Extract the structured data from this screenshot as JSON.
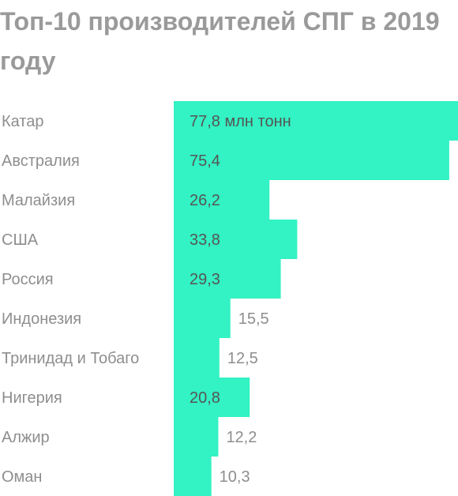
{
  "title": "Топ-10 производителей СПГ в 2019 году",
  "colors": {
    "bar": "#33f2c3",
    "label_gray": "#8e8e8e",
    "value_inside": "#555555",
    "value_outside": "#8e8e8e",
    "title": "#9a9a9a"
  },
  "chart_data": {
    "type": "bar",
    "orientation": "horizontal",
    "title": "Топ-10 производителей СПГ в 2019 году",
    "unit": "млн тонн",
    "categories": [
      "Катар",
      "Австралия",
      "Малайзия",
      "США",
      "Россия",
      "Индонезия",
      "Тринидад и Тобаго",
      "Нигерия",
      "Алжир",
      "Оман"
    ],
    "values": [
      77.8,
      75.4,
      26.2,
      33.8,
      29.3,
      15.5,
      12.5,
      20.8,
      12.2,
      10.3
    ],
    "value_labels": [
      "77,8 млн тонн",
      "75,4",
      "26,2",
      "33,8",
      "29,3",
      "15,5",
      "12,5",
      "20,8",
      "12,2",
      "10,3"
    ],
    "xlim": [
      0,
      77.8
    ],
    "grid": false,
    "legend": "none"
  }
}
